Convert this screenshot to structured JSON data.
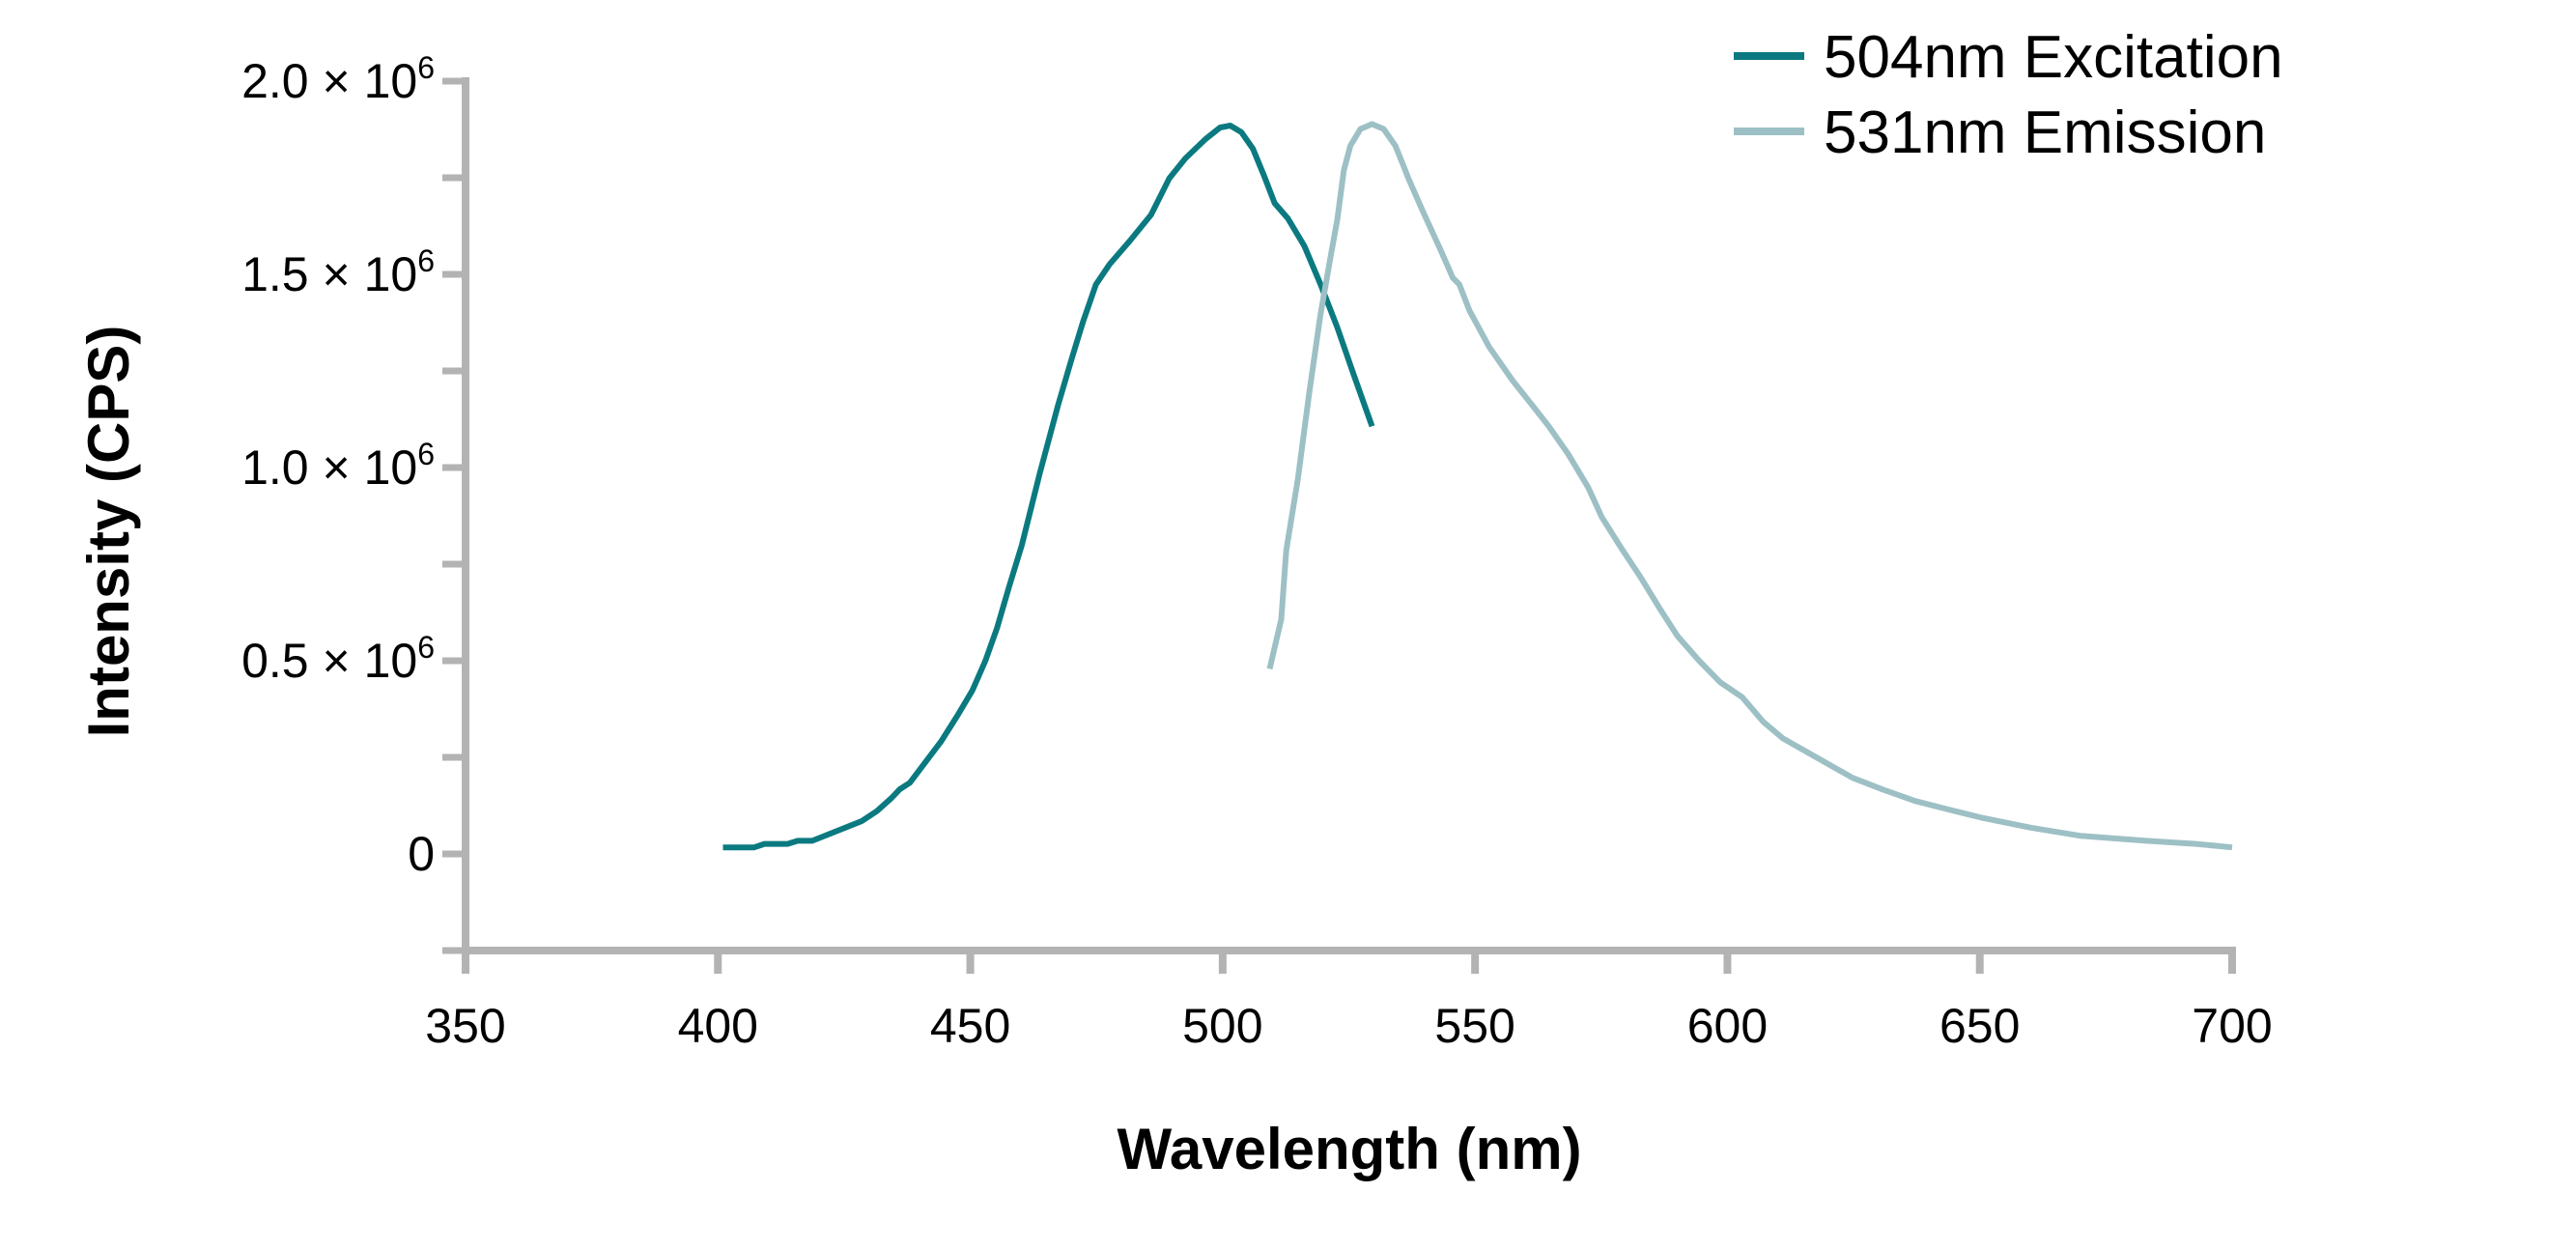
{
  "chart_data": {
    "type": "line",
    "title": "",
    "xlabel": "Wavelength (nm)",
    "ylabel": "Intensity (CPS)",
    "xlim": [
      350,
      700
    ],
    "ylim": [
      -250000,
      2000000
    ],
    "grid": false,
    "legend_position": "top-right",
    "x_ticks": [
      350,
      400,
      450,
      500,
      550,
      600,
      650,
      700
    ],
    "x_tick_labels": [
      "350",
      "400",
      "450",
      "500",
      "550",
      "600",
      "650",
      "700"
    ],
    "y_ticks": [
      0,
      500000,
      1000000,
      1500000,
      2000000
    ],
    "y_tick_labels": [
      {
        "text": "0",
        "sup": ""
      },
      {
        "text": "0.5 × 10",
        "sup": "6"
      },
      {
        "text": "1.0 × 10",
        "sup": "6"
      },
      {
        "text": "1.5 × 10",
        "sup": "6"
      },
      {
        "text": "2.0 × 10",
        "sup": "6"
      }
    ],
    "y_minor_ticks": [
      -250000,
      250000,
      750000,
      1250000,
      1750000
    ],
    "series": [
      {
        "name": "504nm Excitation",
        "color": "#0b7a80",
        "x": [
          401,
          407.2,
          409.2,
          413.8,
          415.8,
          418.7,
          428.5,
          431.5,
          434.4,
          436,
          438,
          444.2,
          447.5,
          450.4,
          453,
          455.3,
          457.6,
          460.2,
          463.8,
          467.4,
          470.1,
          472.3,
          474.9,
          477.6,
          481.5,
          485.8,
          489.4,
          492.6,
          496.6,
          499.5,
          501.5,
          503.7,
          506,
          508.3,
          510.3,
          512.9,
          516.2,
          519.4,
          522.7,
          526,
          529.6
        ],
        "y": [
          17000,
          17000,
          26000,
          26000,
          34000,
          34000,
          85000,
          111000,
          145000,
          167000,
          184000,
          291000,
          359000,
          423000,
          500000,
          585000,
          688000,
          799000,
          987000,
          1162000,
          1282000,
          1376000,
          1474000,
          1526000,
          1585000,
          1654000,
          1748000,
          1800000,
          1850000,
          1880000,
          1885000,
          1868000,
          1825000,
          1752000,
          1684000,
          1645000,
          1573000,
          1474000,
          1363000,
          1239000,
          1107000
        ]
      },
      {
        "name": "531nm Emission",
        "color": "#9dc0c5",
        "x": [
          509.3,
          511.6,
          512.6,
          514.9,
          517.2,
          519.4,
          521.4,
          522.7,
          524,
          525.3,
          527.3,
          529.6,
          531.9,
          534.2,
          535.8,
          536.8,
          539.7,
          543,
          545.6,
          546.9,
          548.9,
          552.8,
          557.4,
          561.3,
          564.6,
          568.5,
          572.4,
          575.1,
          579,
          582.9,
          586.5,
          590.1,
          594.4,
          598.6,
          602.9,
          607.1,
          611,
          615.6,
          620.2,
          624.8,
          630.7,
          637.2,
          643.8,
          650.3,
          660.1,
          669.9,
          683,
          692.8,
          700
        ],
        "y": [
          479000,
          607000,
          786000,
          970000,
          1197000,
          1397000,
          1547000,
          1641000,
          1769000,
          1833000,
          1876000,
          1889000,
          1876000,
          1833000,
          1782000,
          1748000,
          1662000,
          1568000,
          1491000,
          1474000,
          1406000,
          1312000,
          1226000,
          1162000,
          1107000,
          1034000,
          949000,
          872000,
          791000,
          714000,
          637000,
          564000,
          500000,
          444000,
          406000,
          342000,
          299000,
          265000,
          231000,
          197000,
          167000,
          137000,
          115000,
          94000,
          68000,
          47000,
          34000,
          26000,
          17000
        ]
      }
    ],
    "axis_color": "#b3b3b3"
  }
}
